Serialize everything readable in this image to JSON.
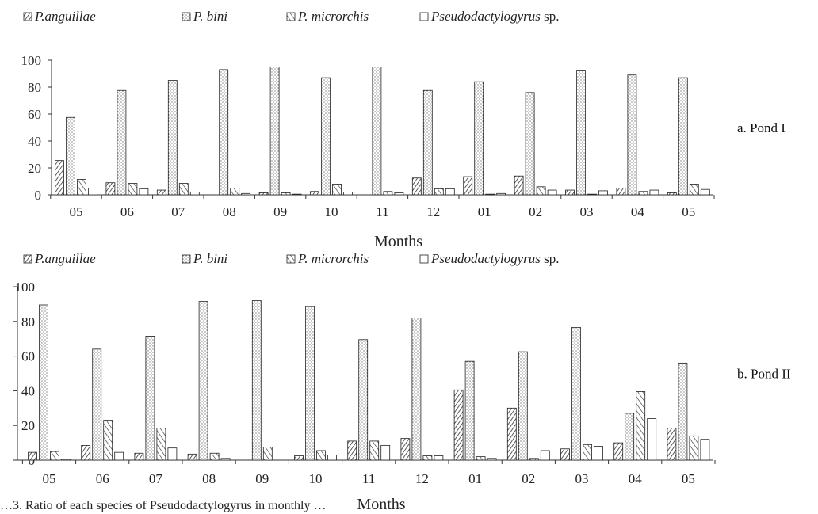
{
  "caption": "…3. Ratio of each species of Pseudodactylogyrus in monthly …",
  "chart_data": [
    {
      "type": "bar",
      "panel_label": "a. Pond I",
      "xlabel": "Months",
      "ylabel": "",
      "ylim": [
        0,
        100
      ],
      "yticks": [
        0,
        20,
        40,
        60,
        80,
        100
      ],
      "grid": false,
      "legend_position": "top",
      "categories": [
        "05",
        "06",
        "07",
        "08",
        "09",
        "10",
        "11",
        "12",
        "01",
        "02",
        "03",
        "04",
        "05"
      ],
      "series": [
        {
          "name": "P.anguillae",
          "pattern": "diag-dense",
          "values": [
            25.5,
            9,
            3.5,
            0,
            1.5,
            2.5,
            0,
            12.5,
            13.5,
            14,
            3.5,
            5,
            1.5
          ]
        },
        {
          "name": "P. bini",
          "pattern": "dots",
          "values": [
            57.5,
            77.5,
            85,
            93,
            95,
            87,
            95,
            77.5,
            84,
            76,
            92,
            89,
            87
          ]
        },
        {
          "name": "P. microrchis",
          "pattern": "diag-wide",
          "values": [
            11.5,
            8.5,
            8.5,
            5,
            1.5,
            8,
            2.5,
            4.5,
            0.5,
            6,
            0.5,
            2.5,
            8
          ]
        },
        {
          "name": "Pseudodactylogyrus sp.",
          "pattern": "none",
          "values": [
            5,
            4.5,
            2,
            1,
            0.5,
            2,
            1.5,
            4.5,
            1,
            3.5,
            3,
            3.5,
            4
          ]
        }
      ]
    },
    {
      "type": "bar",
      "panel_label": "b. Pond II",
      "xlabel": "Months",
      "ylabel": "",
      "ylim": [
        0,
        100
      ],
      "yticks": [
        0,
        20,
        40,
        60,
        80,
        100
      ],
      "grid": false,
      "legend_position": "top",
      "categories": [
        "05",
        "06",
        "07",
        "08",
        "09",
        "10",
        "11",
        "12",
        "01",
        "02",
        "03",
        "04",
        "05"
      ],
      "series": [
        {
          "name": "P.anguillae",
          "pattern": "diag-dense",
          "values": [
            4.5,
            8.5,
            4,
            3.5,
            0,
            2.5,
            11,
            12.5,
            40.5,
            30,
            6.5,
            10,
            18.5
          ]
        },
        {
          "name": "P. bini",
          "pattern": "dots",
          "values": [
            89.5,
            64,
            71.5,
            91.5,
            92,
            88.5,
            69.5,
            82,
            57,
            62.5,
            76.5,
            27,
            56
          ]
        },
        {
          "name": "P. microrchis",
          "pattern": "diag-wide",
          "values": [
            5,
            23,
            18.5,
            4,
            7.5,
            5.5,
            11,
            2.5,
            2,
            1,
            9,
            39.5,
            14
          ]
        },
        {
          "name": "Pseudodactylogyrus sp.",
          "pattern": "none",
          "values": [
            0.5,
            4.5,
            7,
            1,
            0,
            3,
            8.5,
            2.5,
            1,
            5.5,
            8,
            24,
            12
          ]
        }
      ]
    }
  ]
}
